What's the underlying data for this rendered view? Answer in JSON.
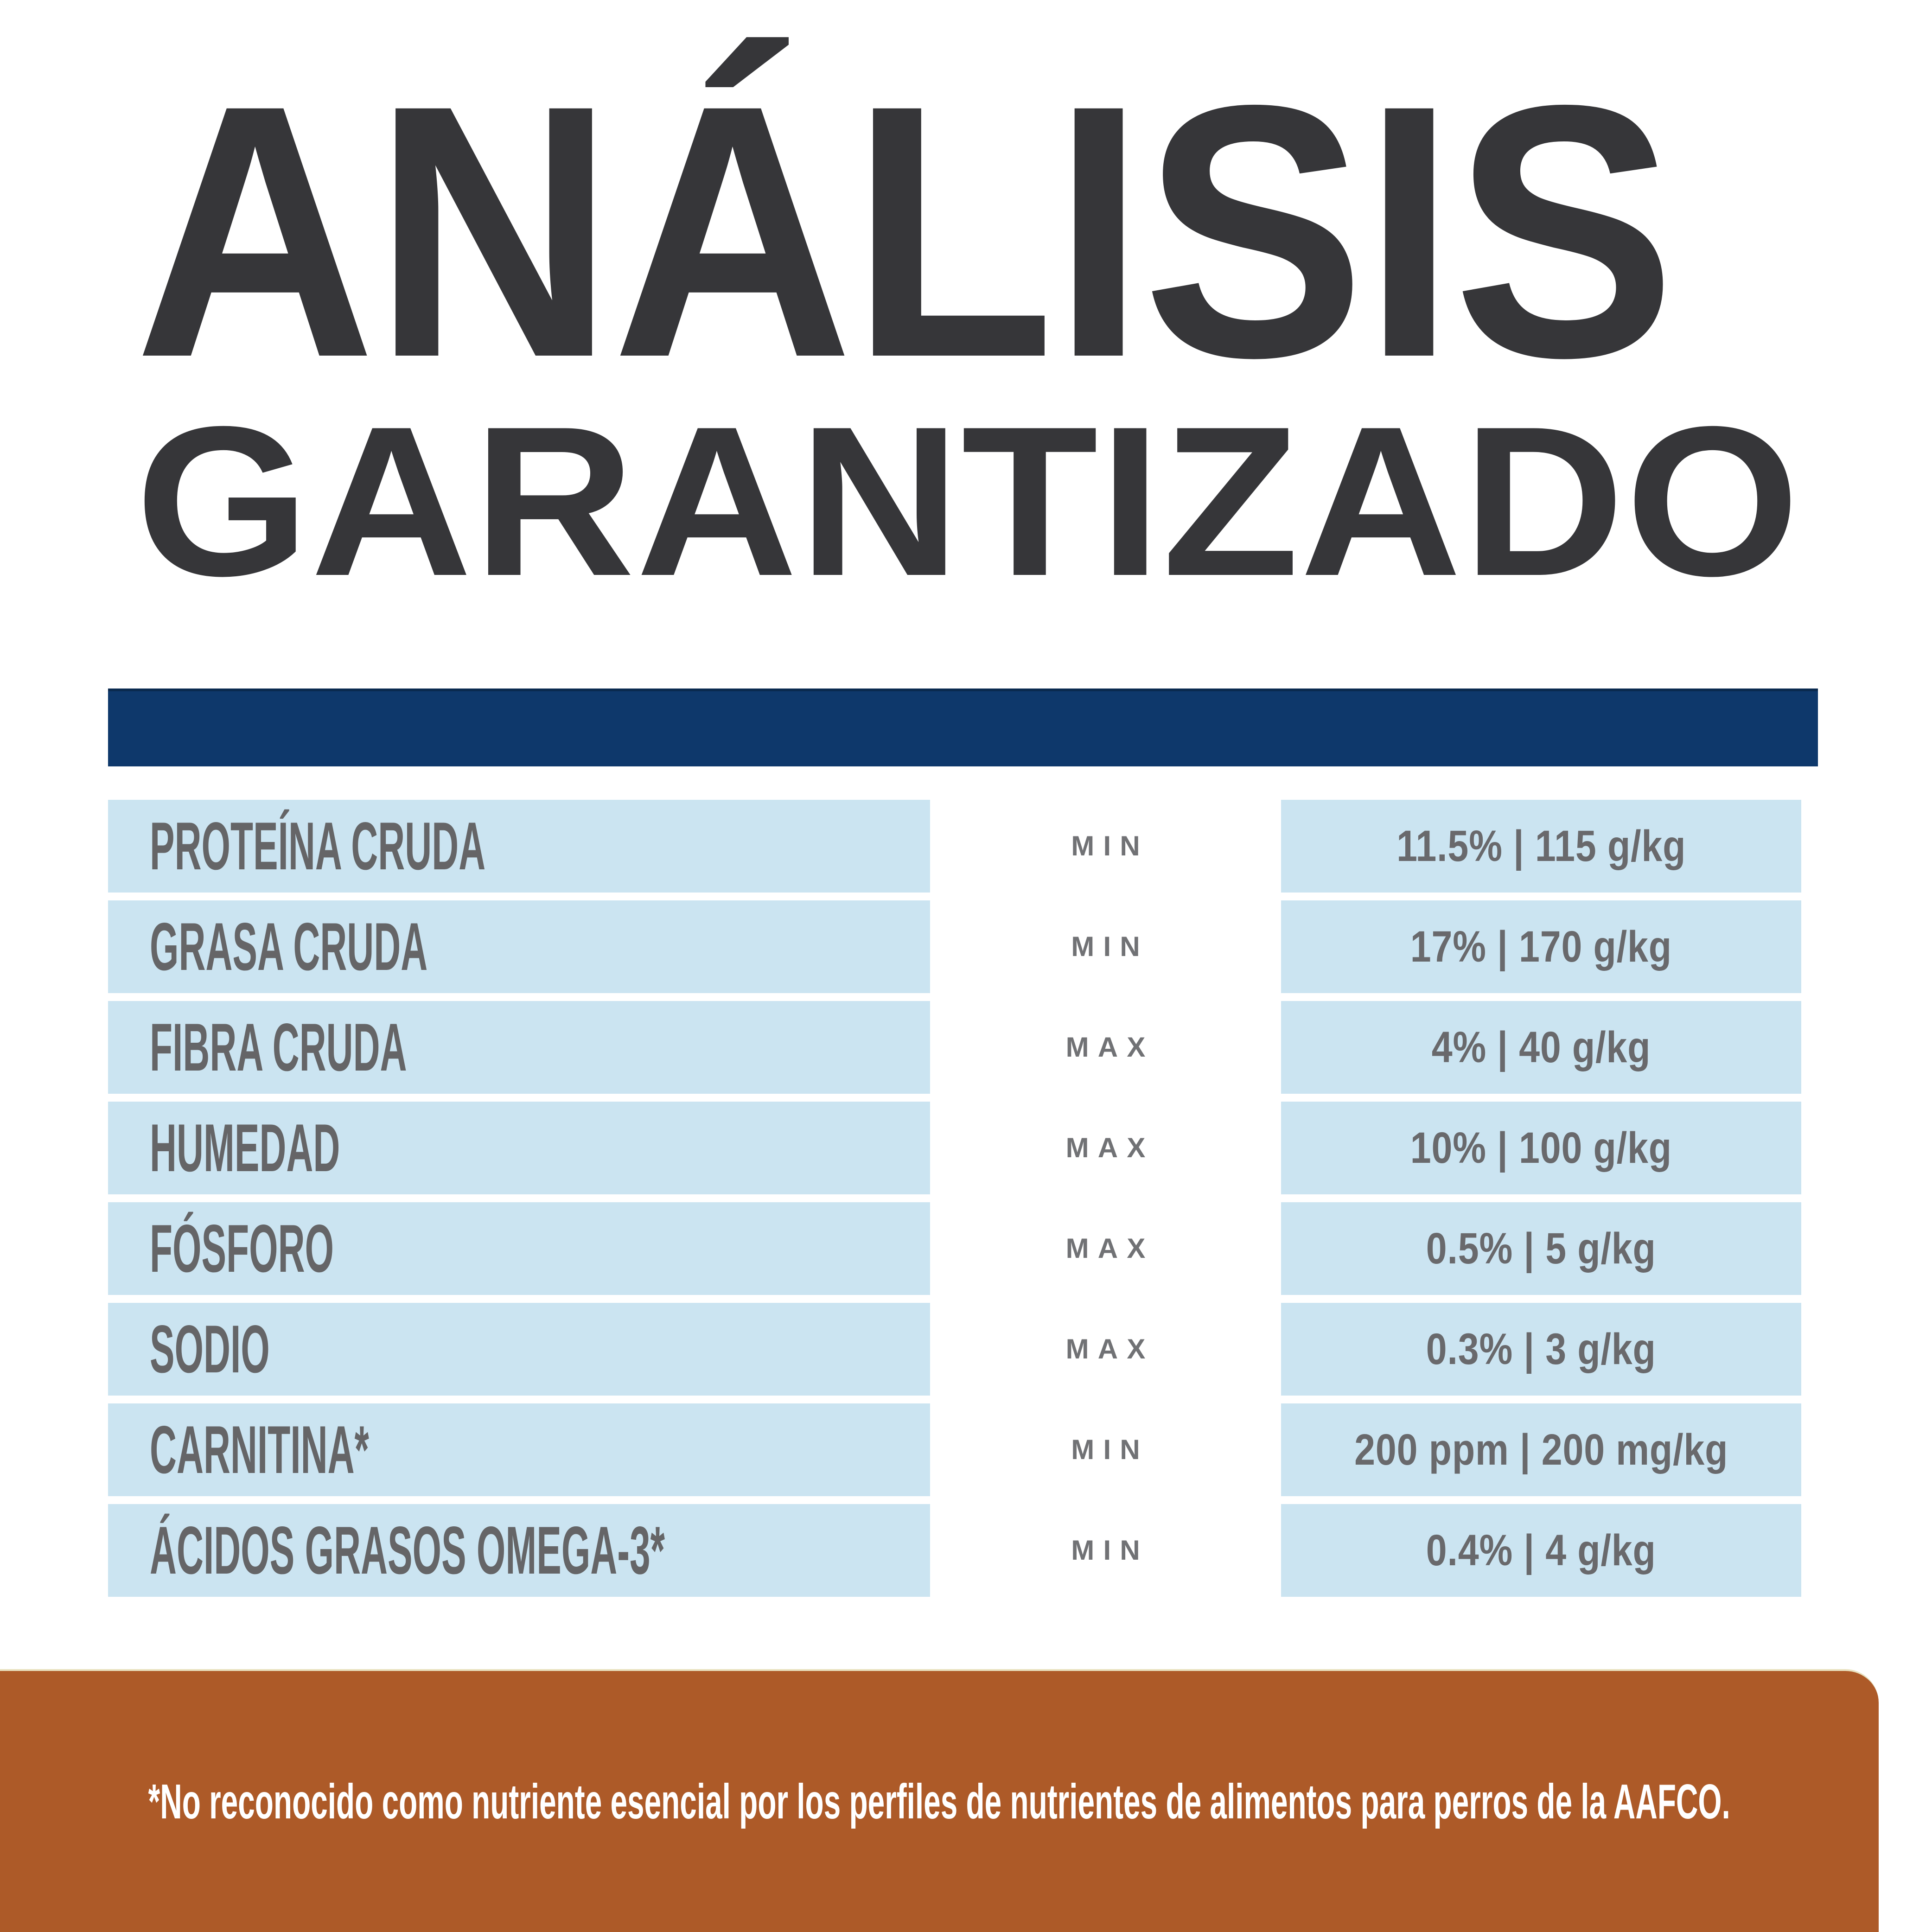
{
  "title": {
    "line1": "ANÁLISIS",
    "line2": "GARANTIZADO",
    "color": "#363639"
  },
  "divider": {
    "color": "#0e386b"
  },
  "table": {
    "row_bg": "#cbe4f1",
    "label_color": "#656567",
    "qualifier_color": "#717275",
    "value_color": "#69696c",
    "rows": [
      {
        "label": "PROTEÍNA CRUDA",
        "qualifier": "MIN",
        "value": "11.5% | 115 g/kg"
      },
      {
        "label": "GRASA CRUDA",
        "qualifier": "MIN",
        "value": "17% | 170 g/kg"
      },
      {
        "label": "FIBRA CRUDA",
        "qualifier": "MAX",
        "value": "4% | 40 g/kg"
      },
      {
        "label": "HUMEDAD",
        "qualifier": "MAX",
        "value": "10% | 100 g/kg"
      },
      {
        "label": "FÓSFORO",
        "qualifier": "MAX",
        "value": "0.5% | 5 g/kg"
      },
      {
        "label": "SODIO",
        "qualifier": "MAX",
        "value": "0.3% | 3 g/kg"
      },
      {
        "label": "CARNITINA*",
        "qualifier": "MIN",
        "value": "200 ppm | 200 mg/kg"
      },
      {
        "label": "ÁCIDOS GRASOS OMEGA-3*",
        "qualifier": "MIN",
        "value": "0.4% | 4 g/kg"
      }
    ]
  },
  "footer": {
    "bg": "#ad5a28",
    "text": "*No reconocido como nutriente esencial por los perfiles de nutrientes de alimentos para perros de la AAFCO.",
    "text_color": "#ffffff"
  }
}
